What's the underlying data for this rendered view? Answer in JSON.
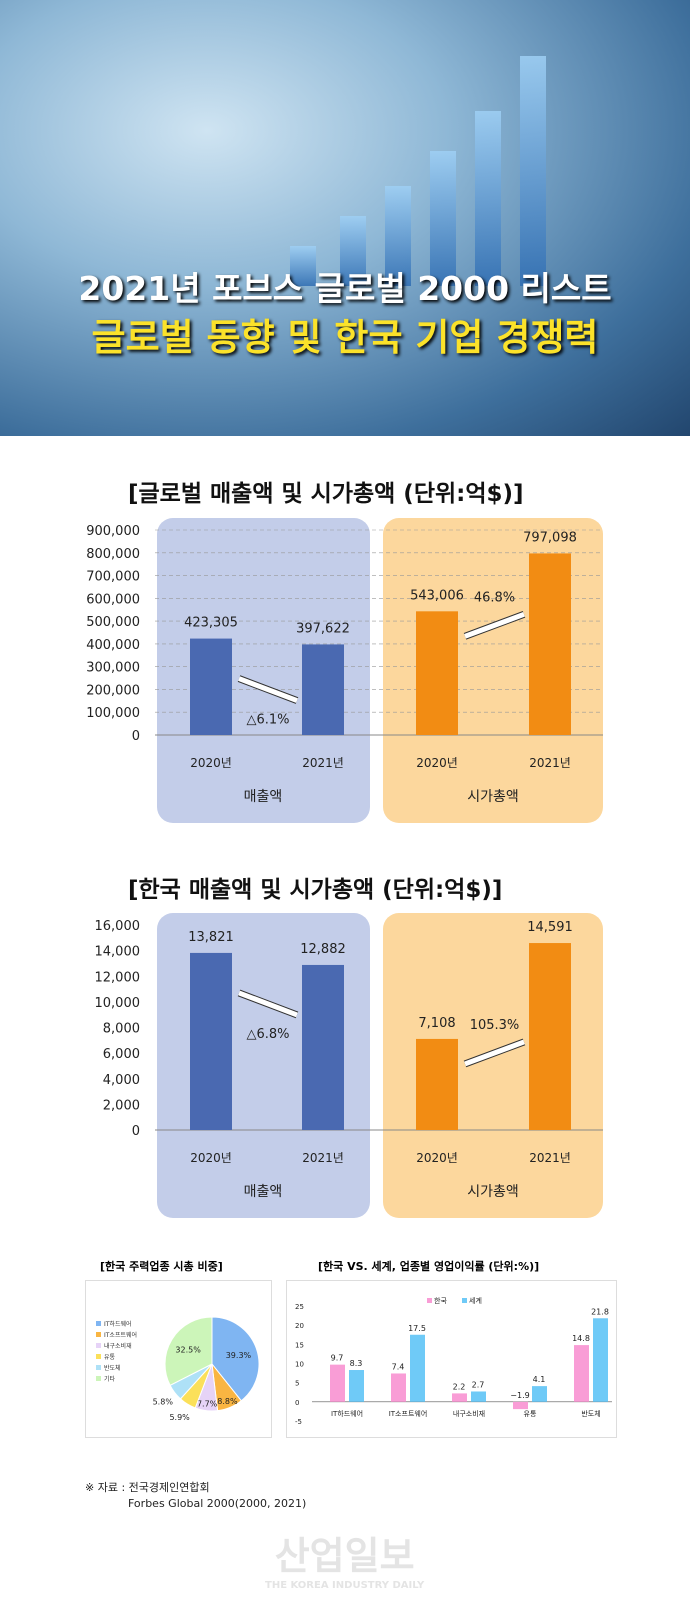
{
  "header": {
    "title_line1": "2021년  포브스 글로벌 2000 리스트",
    "title_line2": "글로벌 동향 및 한국 기업 경쟁력",
    "accent_color": "#fbe22a"
  },
  "chart_data": [
    {
      "type": "bar",
      "title": "[글로벌 매출액 및 시가총액 (단위:억$)]",
      "categories": [
        "2020년",
        "2021년",
        "2020년",
        "2021년"
      ],
      "groups": [
        "매출액",
        "시가총액"
      ],
      "values": [
        423305,
        397622,
        543006,
        797098
      ],
      "value_labels": [
        "423,305",
        "397,622",
        "543,006",
        "797,098"
      ],
      "ylim": [
        0,
        900000
      ],
      "yticks": [
        "0",
        "100,000",
        "200,000",
        "300,000",
        "400,000",
        "500,000",
        "600,000",
        "700,000",
        "800,000",
        "900,000"
      ],
      "annotations": [
        "△6.1%",
        "46.8%"
      ],
      "colors": [
        "#4a69b1",
        "#f28c13"
      ],
      "panel_colors": [
        "#c3cde9",
        "#fcd79d"
      ],
      "grid": true
    },
    {
      "type": "bar",
      "title": "[한국 매출액 및 시가총액 (단위:억$)]",
      "categories": [
        "2020년",
        "2021년",
        "2020년",
        "2021년"
      ],
      "groups": [
        "매출액",
        "시가총액"
      ],
      "values": [
        13821,
        12882,
        7108,
        14591
      ],
      "value_labels": [
        "13,821",
        "12,882",
        "7,108",
        "14,591"
      ],
      "ylim": [
        0,
        16000
      ],
      "yticks": [
        "0",
        "2,000",
        "4,000",
        "6,000",
        "8,000",
        "10,000",
        "12,000",
        "14,000",
        "16,000"
      ],
      "annotations": [
        "△6.8%",
        "105.3%"
      ],
      "colors": [
        "#4a69b1",
        "#f28c13"
      ],
      "panel_colors": [
        "#c3cde9",
        "#fcd79d"
      ],
      "grid": false
    },
    {
      "type": "pie",
      "title": "[한국 주력업종 시총 비중]",
      "legend_placement": "left",
      "labels": [
        "IT하드웨어",
        "IT소프트웨어",
        "내구소비재",
        "유통",
        "반도체",
        "기타"
      ],
      "values": [
        39.3,
        8.8,
        7.7,
        5.9,
        5.8,
        32.5
      ],
      "value_labels": [
        "39.3%",
        "8.8%",
        "7.7%",
        "5.9%",
        "5.8%",
        "32.5%"
      ],
      "colors": [
        "#7fb5f2",
        "#f9b542",
        "#e6d3f7",
        "#fbe05a",
        "#aee1f7",
        "#ccf5b9"
      ]
    },
    {
      "type": "bar",
      "title": "[한국 VS. 세계, 업종별 영업이익률 (단위:%)]",
      "legend_placement": "top",
      "categories": [
        "IT하드웨어",
        "IT소프트웨어",
        "내구소비재",
        "유통",
        "반도체"
      ],
      "series": [
        {
          "name": "한국",
          "values": [
            9.7,
            7.4,
            2.2,
            -1.9,
            14.8
          ],
          "color": "#f99dd6"
        },
        {
          "name": "세계",
          "values": [
            8.3,
            17.5,
            2.7,
            4.1,
            21.8
          ],
          "color": "#6fcaf7"
        }
      ],
      "ylim": [
        -5,
        25
      ],
      "yticks": [
        "25",
        "20",
        "15",
        "10",
        "5",
        "0",
        "-5"
      ]
    }
  ],
  "source": {
    "line1": "※ 자료 : 전국경제인연합회",
    "line2": "Forbes Global 2000(2000, 2021)"
  },
  "watermark": {
    "name": "산업일보",
    "sub": "THE KOREA INDUSTRY DAILY"
  }
}
